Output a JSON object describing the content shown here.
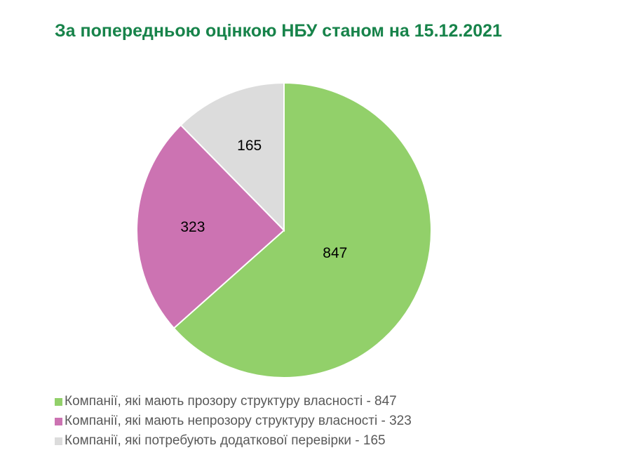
{
  "chart_data": {
    "type": "pie",
    "title": "За попередньою оцінкою НБУ станом на 15.12.2021",
    "categories": [
      "Компанії, які мають прозору структуру власності - 847",
      "Компанії, які мають непрозору структуру власності - 323",
      "Компанії, які потребують додаткової перевірки - 165"
    ],
    "values": [
      847,
      323,
      165
    ],
    "data_labels": [
      "847",
      "323",
      "165"
    ],
    "colors": [
      "#92d06a",
      "#cc73b2",
      "#dcdcdc"
    ],
    "legend_position": "bottom-left"
  }
}
